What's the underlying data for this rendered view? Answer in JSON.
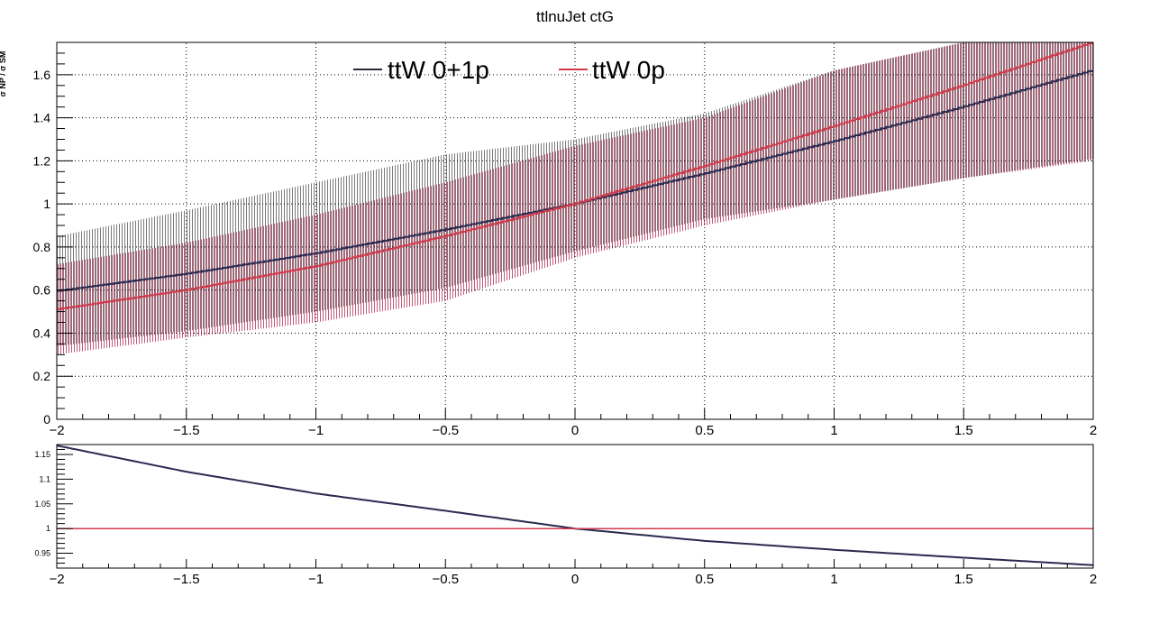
{
  "title": "ttlnuJet ctG",
  "ylabel_fragment": "σ NP / σ SM",
  "legend": [
    {
      "label": "ttW 0+1p",
      "color": "#2b2b3a"
    },
    {
      "label": "ttW 0p",
      "color": "#d03a4a"
    }
  ],
  "colors": {
    "band_0p1p": "#6e6e6e",
    "band_0p": "#c04060",
    "line_0p1p": "#2a2a50",
    "line_0p": "#d03a4a",
    "grid": "#000000"
  },
  "chart_data": [
    {
      "type": "line",
      "panel": "main",
      "title": "ttlnuJet ctG",
      "xlim": [
        -2,
        2
      ],
      "ylim": [
        0,
        1.75
      ],
      "grid": true,
      "legend_position": "top",
      "x_ticks": [
        -2,
        -1.5,
        -1,
        -0.5,
        0,
        0.5,
        1,
        1.5,
        2
      ],
      "x_tick_labels": [
        "−2",
        "−1.5",
        "−1",
        "−0.5",
        "0",
        "0.5",
        "1",
        "1.5",
        "2"
      ],
      "y_ticks": [
        0,
        0.2,
        0.4,
        0.6,
        0.8,
        1,
        1.2,
        1.4,
        1.6
      ],
      "y_tick_labels": [
        "0",
        "0.2",
        "0.4",
        "0.6",
        "0.8",
        "1",
        "1.2",
        "1.4",
        "1.6"
      ],
      "x": [
        -2,
        -1.5,
        -1,
        -0.5,
        0,
        0.5,
        1,
        1.5,
        2
      ],
      "series": [
        {
          "name": "ttW 0+1p",
          "values": [
            0.595,
            0.675,
            0.77,
            0.88,
            1.0,
            1.14,
            1.29,
            1.45,
            1.62
          ],
          "band_low": [
            0.34,
            0.41,
            0.5,
            0.61,
            0.78,
            0.93,
            1.02,
            1.12,
            1.21
          ],
          "band_high": [
            0.85,
            0.97,
            1.1,
            1.23,
            1.3,
            1.42,
            1.62,
            1.75,
            1.75
          ]
        },
        {
          "name": "ttW 0p",
          "values": [
            0.51,
            0.6,
            0.71,
            0.85,
            1.0,
            1.175,
            1.36,
            1.55,
            1.75
          ],
          "band_low": [
            0.3,
            0.38,
            0.45,
            0.55,
            0.75,
            0.9,
            1.02,
            1.12,
            1.2
          ],
          "band_high": [
            0.72,
            0.82,
            0.95,
            1.1,
            1.27,
            1.4,
            1.62,
            1.75,
            1.75
          ]
        }
      ]
    },
    {
      "type": "line",
      "panel": "ratio",
      "xlim": [
        -2,
        2
      ],
      "ylim": [
        0.92,
        1.17
      ],
      "grid": false,
      "x_ticks": [
        -2,
        -1.5,
        -1,
        -0.5,
        0,
        0.5,
        1,
        1.5,
        2
      ],
      "x_tick_labels": [
        "−2",
        "−1.5",
        "−1",
        "−0.5",
        "0",
        "0.5",
        "1",
        "1.5",
        "2"
      ],
      "y_ticks": [
        0.95,
        1,
        1.05,
        1.1,
        1.15
      ],
      "y_tick_labels": [
        "0.95",
        "1",
        "1.05",
        "1.1",
        "1.15"
      ],
      "x": [
        -2,
        -1.5,
        -1,
        -0.5,
        0,
        0.5,
        1,
        1.5,
        2
      ],
      "series": [
        {
          "name": "ttW 0+1p",
          "values": [
            1.168,
            1.115,
            1.071,
            1.036,
            1.0,
            0.975,
            0.957,
            0.941,
            0.926
          ]
        },
        {
          "name": "ttW 0p",
          "values": [
            1,
            1,
            1,
            1,
            1,
            1,
            1,
            1,
            1
          ]
        }
      ]
    }
  ]
}
